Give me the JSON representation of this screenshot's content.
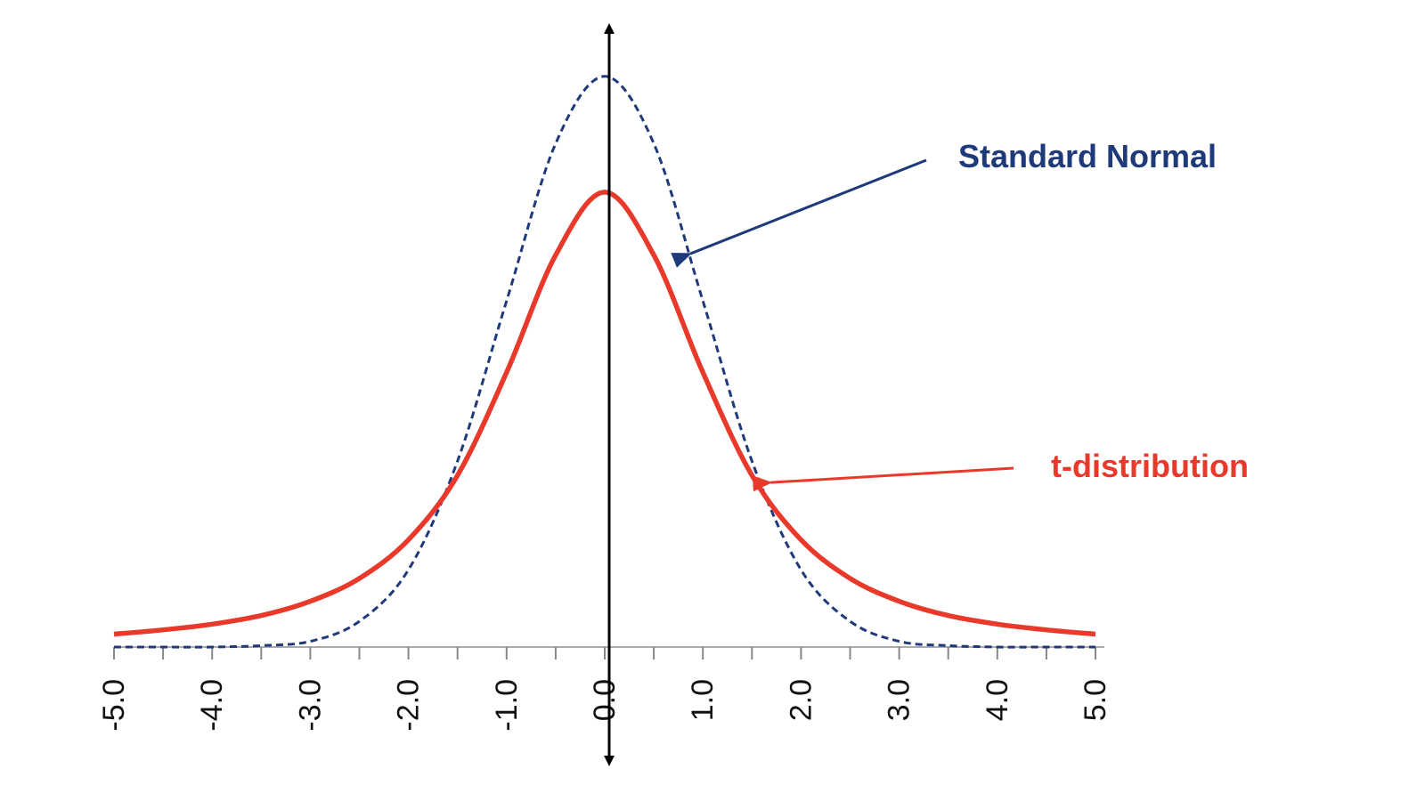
{
  "chart_data": {
    "type": "line",
    "title": "",
    "xlabel": "",
    "ylabel": "",
    "xlim": [
      -5.0,
      5.0
    ],
    "ylim": [
      0,
      0.42
    ],
    "x_ticks": [
      -5.0,
      -4.0,
      -3.0,
      -2.0,
      -1.0,
      0.0,
      1.0,
      2.0,
      3.0,
      4.0,
      5.0
    ],
    "x_tick_labels": [
      "-5.0",
      "-4.0",
      "-3.0",
      "-2.0",
      "-1.0",
      "0.0",
      "1.0",
      "2.0",
      "3.0",
      "4.0",
      "5.0"
    ],
    "grid": false,
    "legend": "none (series labeled by arrow annotations)",
    "series": [
      {
        "name": "Standard Normal",
        "color": "#1f3a7a",
        "style": "dashed",
        "x": [
          -5.0,
          -4.5,
          -4.0,
          -3.5,
          -3.0,
          -2.5,
          -2.0,
          -1.5,
          -1.0,
          -0.5,
          0.0,
          0.5,
          1.0,
          1.5,
          2.0,
          2.5,
          3.0,
          3.5,
          4.0,
          4.5,
          5.0
        ],
        "y": [
          0.0,
          0.0,
          0.0,
          0.001,
          0.004,
          0.018,
          0.054,
          0.13,
          0.242,
          0.352,
          0.399,
          0.352,
          0.242,
          0.13,
          0.054,
          0.018,
          0.004,
          0.001,
          0.0,
          0.0,
          0.0
        ]
      },
      {
        "name": "t-distribution",
        "color": "#e8392b",
        "style": "solid",
        "x": [
          -5.0,
          -4.5,
          -4.0,
          -3.5,
          -3.0,
          -2.5,
          -2.0,
          -1.5,
          -1.0,
          -0.5,
          0.0,
          0.5,
          1.0,
          1.5,
          2.0,
          2.5,
          3.0,
          3.5,
          4.0,
          4.5,
          5.0
        ],
        "y": [
          0.009,
          0.012,
          0.016,
          0.022,
          0.032,
          0.048,
          0.075,
          0.12,
          0.192,
          0.274,
          0.318,
          0.274,
          0.192,
          0.12,
          0.075,
          0.048,
          0.032,
          0.022,
          0.016,
          0.012,
          0.009
        ]
      }
    ],
    "annotations": [
      {
        "text": "Standard Normal",
        "color": "#1f3a7a",
        "points_to": {
          "x": 0.8,
          "y": 0.27
        }
      },
      {
        "text": "t-distribution",
        "color": "#e8392b",
        "points_to": {
          "x": 1.6,
          "y": 0.12
        }
      }
    ]
  }
}
